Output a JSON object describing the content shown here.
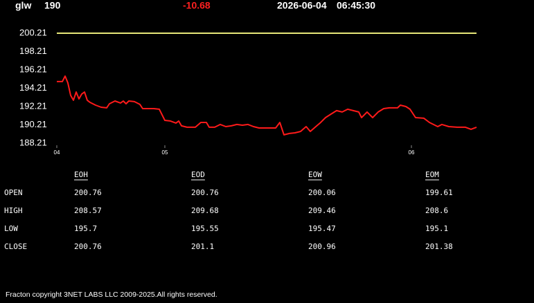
{
  "header": {
    "symbol": "glw",
    "last": 190,
    "change": -10.68,
    "date": "2026-06-04",
    "time": "06:45:30"
  },
  "chart_data": {
    "type": "line",
    "x": [
      0,
      8,
      12,
      16,
      20,
      24,
      28,
      32,
      36,
      40,
      44,
      48,
      56,
      64,
      72,
      76,
      84,
      92,
      96,
      100,
      104,
      112,
      120,
      124,
      132,
      140,
      148,
      156,
      164,
      172,
      176,
      180,
      188,
      200,
      208,
      216,
      220,
      228,
      236,
      244,
      252,
      260,
      268,
      276,
      284,
      292,
      300,
      308,
      316,
      322,
      328,
      336,
      344,
      352,
      360,
      366,
      374,
      380,
      388,
      396,
      404,
      412,
      420,
      428,
      436,
      440,
      448,
      456,
      464,
      472,
      480,
      492,
      496,
      504,
      510,
      518,
      530,
      538,
      550,
      556,
      566,
      578,
      590,
      598,
      606
    ],
    "series": [
      {
        "color": "#ff1a1a",
        "values": [
          194.93,
          194.93,
          195.53,
          194.78,
          193.42,
          192.89,
          193.79,
          193.04,
          193.57,
          193.79,
          192.89,
          192.66,
          192.36,
          192.13,
          192.06,
          192.51,
          192.81,
          192.59,
          192.81,
          192.51,
          192.81,
          192.74,
          192.44,
          191.98,
          191.98,
          191.98,
          191.91,
          190.7,
          190.63,
          190.4,
          190.63,
          190.1,
          189.95,
          189.95,
          190.47,
          190.47,
          189.95,
          189.95,
          190.25,
          190.02,
          190.1,
          190.25,
          190.17,
          190.25,
          190.02,
          189.87,
          189.87,
          189.87,
          189.87,
          190.47,
          189.12,
          189.27,
          189.34,
          189.49,
          190.02,
          189.49,
          190.02,
          190.4,
          191,
          191.38,
          191.76,
          191.61,
          191.91,
          191.76,
          191.61,
          191,
          191.61,
          191,
          191.61,
          191.98,
          192.06,
          192.06,
          192.36,
          192.21,
          191.91,
          191,
          190.93,
          190.47,
          190.02,
          190.25,
          190.02,
          189.95,
          189.95,
          189.72,
          189.95
        ]
      }
    ],
    "reference": {
      "color": "#e8e87a",
      "x": [
        0,
        606
      ],
      "values": [
        200.21,
        200.21
      ]
    },
    "xlim": [
      0,
      606
    ],
    "xticks": [
      {
        "value": 0,
        "label": "04"
      },
      {
        "value": 156,
        "label": "05"
      },
      {
        "value": 512,
        "label": "06"
      }
    ],
    "ylim": [
      187.98,
      200.81
    ],
    "yticks": [
      188.21,
      190.21,
      192.21,
      194.21,
      196.21,
      198.21,
      200.21
    ]
  },
  "table": {
    "columns": [
      "EOH",
      "EOD",
      "EOW",
      "EOM"
    ],
    "rows": [
      {
        "label": "OPEN",
        "values": [
          200.76,
          200.76,
          200.06,
          199.61
        ]
      },
      {
        "label": "HIGH",
        "values": [
          208.57,
          209.68,
          209.46,
          208.6
        ]
      },
      {
        "label": "LOW",
        "values": [
          195.7,
          195.55,
          195.47,
          195.1
        ]
      },
      {
        "label": "CLOSE",
        "values": [
          200.76,
          201.1,
          200.96,
          201.38
        ]
      }
    ]
  },
  "footer": "Fracton copyright 3NET LABS LLC 2009-2025.All rights reserved."
}
